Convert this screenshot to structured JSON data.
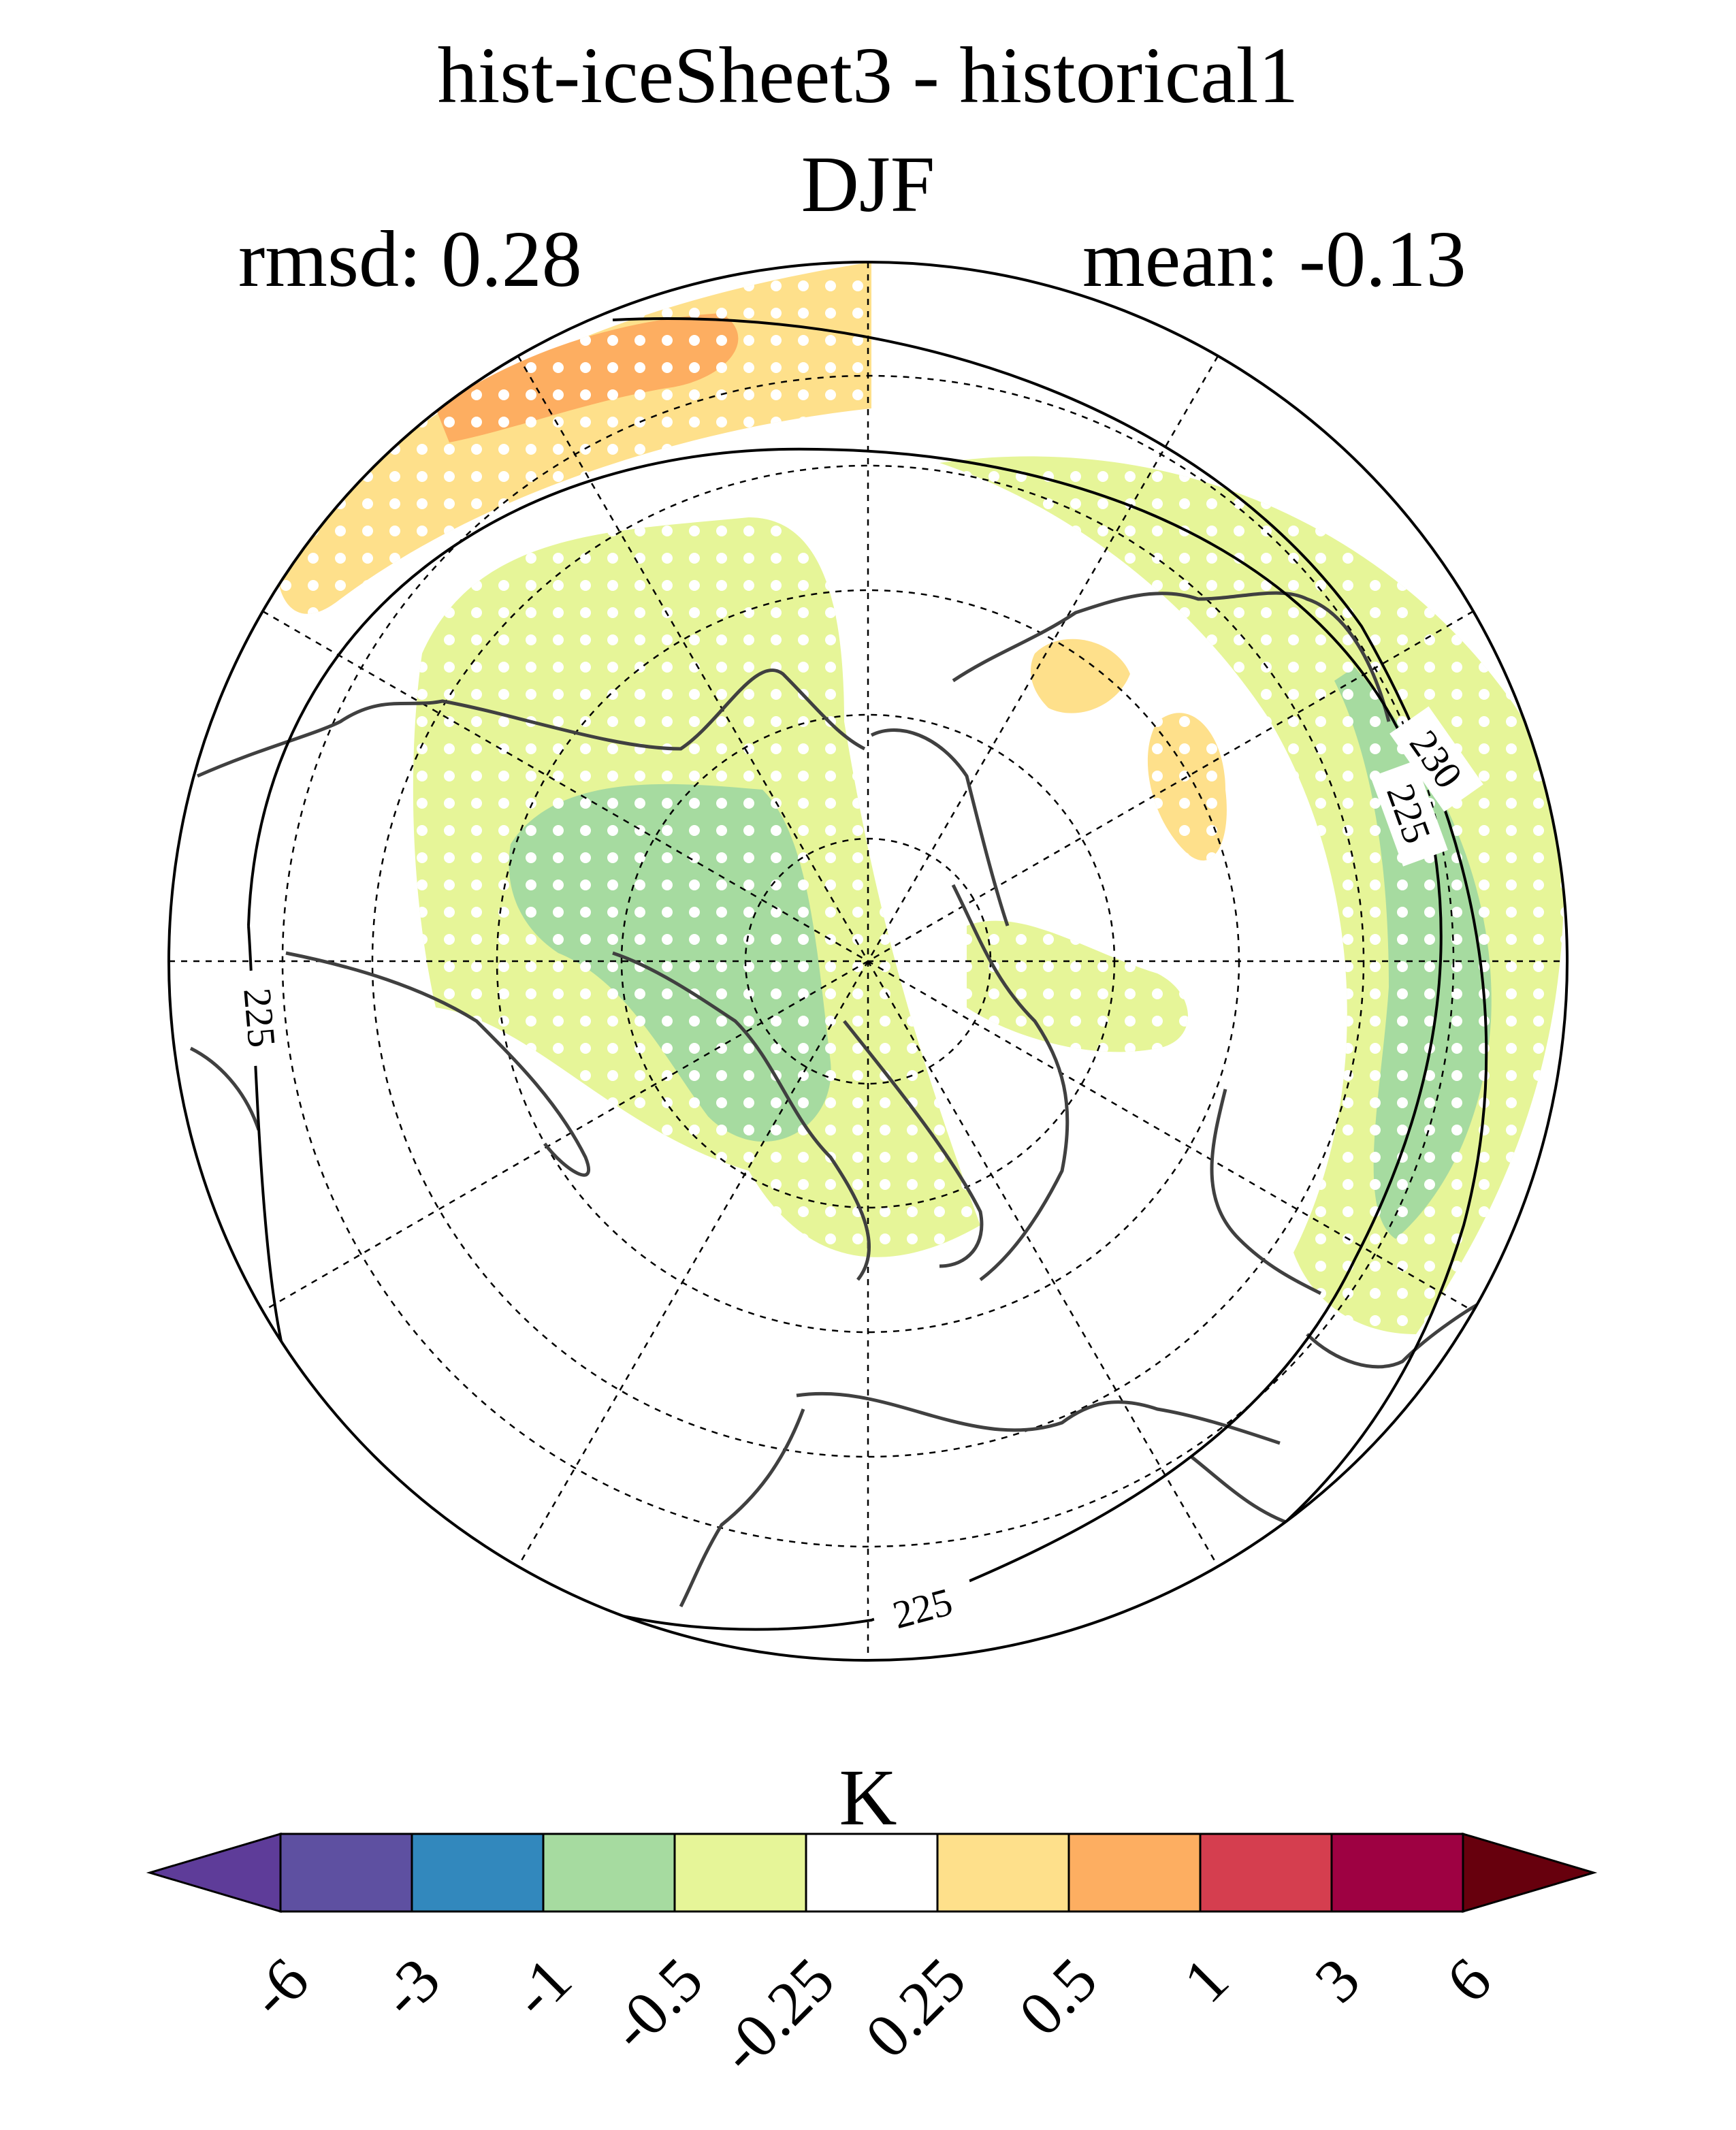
{
  "title": "hist-iceSheet3 - historical1",
  "season": "DJF",
  "stats": {
    "rmsd": "rmsd: 0.28",
    "mean": "mean: -0.13"
  },
  "colorbar": {
    "units": "K",
    "ticks": [
      "-6",
      "-3",
      "-1",
      "-0.5",
      "-0.25",
      "0.25",
      "0.5",
      "1",
      "3",
      "6"
    ],
    "colors": [
      "#5e3c99",
      "#5e50a1",
      "#3288bd",
      "#a6dba0",
      "#e6f598",
      "#ffffff",
      "#fee08b",
      "#fdae61",
      "#d53e4f",
      "#9e0142",
      "#67000d"
    ]
  },
  "contour_labels": [
    "225",
    "225",
    "225",
    "230"
  ],
  "map": {
    "projection": "north-polar-stereographic",
    "colors": {
      "stipple": "#ffffff",
      "coastline": "#404040",
      "contour": "#000000",
      "grid": "#000000"
    }
  }
}
